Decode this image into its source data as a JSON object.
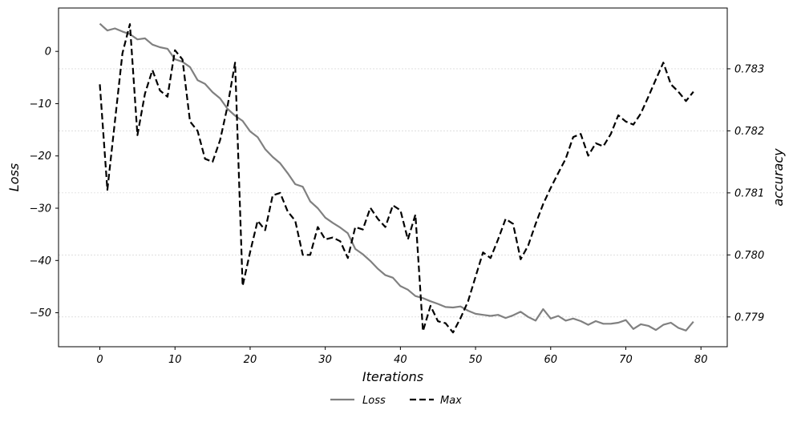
{
  "chart_data": {
    "type": "line",
    "title": "",
    "xlabel": "Iterations",
    "ylabel_left": "Loss",
    "ylabel_right": "accuracy",
    "xlim": [
      -5.5,
      83.5
    ],
    "ylim_left": [
      -56.5,
      8.3
    ],
    "ylim_right": [
      0.77852,
      0.78398
    ],
    "x_ticks": [
      0,
      10,
      20,
      30,
      40,
      50,
      60,
      70,
      80
    ],
    "y_left_ticks": [
      0,
      -10,
      -20,
      -30,
      -40,
      -50
    ],
    "y_right_ticks": [
      0.779,
      0.78,
      0.781,
      0.782,
      0.783
    ],
    "y_right_tick_labels": [
      "0.779",
      "0.780",
      "0.781",
      "0.782",
      "0.783"
    ],
    "grid": "horizontal dotted (right axis)",
    "legend_position": "bottom-center, below plot",
    "series": [
      {
        "name": "Loss",
        "axis": "left",
        "color": "#808080",
        "style": "solid",
        "x": [
          0,
          1,
          2,
          3,
          4,
          5,
          6,
          7,
          8,
          9,
          10,
          11,
          12,
          13,
          14,
          15,
          16,
          17,
          18,
          19,
          20,
          21,
          22,
          23,
          24,
          25,
          26,
          27,
          28,
          29,
          30,
          31,
          32,
          33,
          34,
          35,
          36,
          37,
          38,
          39,
          40,
          41,
          42,
          43,
          44,
          45,
          46,
          47,
          48,
          49,
          50,
          51,
          52,
          53,
          54,
          55,
          56,
          57,
          58,
          59,
          60,
          61,
          62,
          63,
          64,
          65,
          66,
          67,
          68,
          69,
          70,
          71,
          72,
          73,
          74,
          75,
          76,
          77,
          78,
          79
        ],
        "values": [
          5.3,
          4.0,
          4.4,
          3.8,
          3.3,
          2.3,
          2.5,
          1.3,
          0.8,
          0.5,
          -1.5,
          -2.0,
          -3.0,
          -5.5,
          -6.2,
          -7.8,
          -9.0,
          -11.0,
          -12.3,
          -13.3,
          -15.3,
          -16.4,
          -18.7,
          -20.2,
          -21.4,
          -23.3,
          -25.4,
          -25.9,
          -28.7,
          -30.0,
          -31.8,
          -32.8,
          -33.7,
          -34.8,
          -37.8,
          -38.8,
          -40.1,
          -41.6,
          -42.8,
          -43.3,
          -44.9,
          -45.6,
          -46.8,
          -47.2,
          -47.8,
          -48.3,
          -48.9,
          -49.0,
          -48.8,
          -49.6,
          -50.2,
          -50.4,
          -50.6,
          -50.4,
          -51.0,
          -50.5,
          -49.8,
          -50.8,
          -51.5,
          -49.3,
          -51.1,
          -50.6,
          -51.5,
          -51.1,
          -51.6,
          -52.3,
          -51.6,
          -52.1,
          -52.1,
          -51.9,
          -51.4,
          -53.1,
          -52.2,
          -52.5,
          -53.3,
          -52.3,
          -51.9,
          -52.9,
          -53.4,
          -51.7
        ]
      },
      {
        "name": "Max",
        "axis": "right",
        "color": "#000000",
        "style": "dashed",
        "x": [
          0,
          1,
          2,
          3,
          4,
          5,
          6,
          7,
          8,
          9,
          10,
          11,
          12,
          13,
          14,
          15,
          16,
          17,
          18,
          19,
          20,
          21,
          22,
          23,
          24,
          25,
          26,
          27,
          28,
          29,
          30,
          31,
          32,
          33,
          34,
          35,
          36,
          37,
          38,
          39,
          40,
          41,
          42,
          43,
          44,
          45,
          46,
          47,
          48,
          49,
          50,
          51,
          52,
          53,
          54,
          55,
          56,
          57,
          58,
          59,
          60,
          61,
          62,
          63,
          64,
          65,
          66,
          67,
          68,
          69,
          70,
          71,
          72,
          73,
          74,
          75,
          76,
          77,
          78,
          79
        ],
        "values": [
          0.78275,
          0.78105,
          0.78215,
          0.78325,
          0.78372,
          0.78193,
          0.7826,
          0.78298,
          0.78265,
          0.78255,
          0.7833,
          0.78315,
          0.78215,
          0.782,
          0.78155,
          0.7815,
          0.78185,
          0.7824,
          0.7831,
          0.7795,
          0.78005,
          0.78055,
          0.7804,
          0.78096,
          0.781,
          0.7807,
          0.78055,
          0.78,
          0.78,
          0.78045,
          0.78025,
          0.78028,
          0.78022,
          0.77995,
          0.78045,
          0.78041,
          0.78076,
          0.78058,
          0.78045,
          0.7808,
          0.78072,
          0.78025,
          0.78065,
          0.77877,
          0.77918,
          0.77893,
          0.7789,
          0.77875,
          0.77898,
          0.77925,
          0.77965,
          0.78004,
          0.77995,
          0.78025,
          0.78058,
          0.7805,
          0.77993,
          0.78015,
          0.7805,
          0.78082,
          0.78108,
          0.78132,
          0.78155,
          0.7819,
          0.78195,
          0.7816,
          0.7818,
          0.78175,
          0.78195,
          0.78225,
          0.78215,
          0.7821,
          0.78228,
          0.78255,
          0.78283,
          0.7831,
          0.78275,
          0.78263,
          0.78248,
          0.78263
        ]
      }
    ]
  }
}
